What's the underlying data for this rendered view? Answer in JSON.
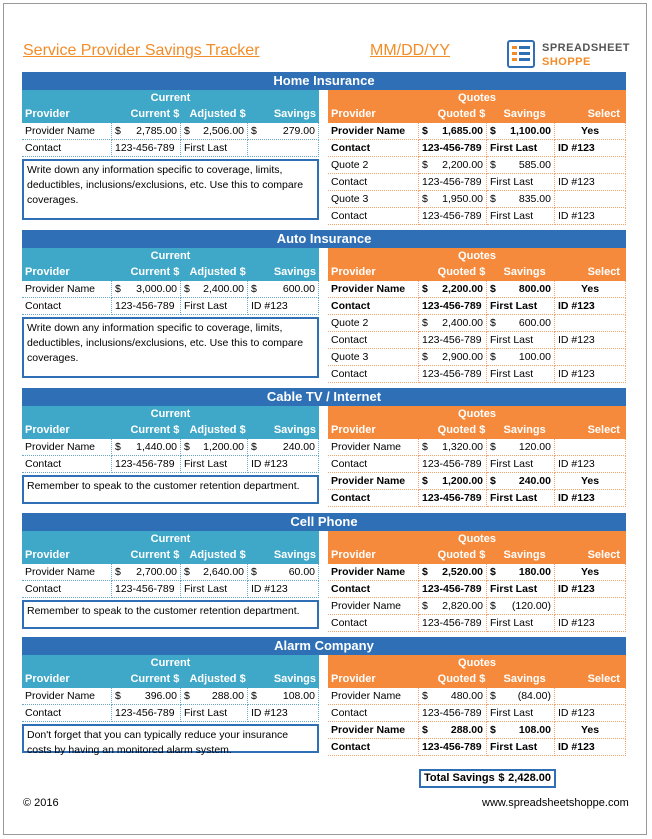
{
  "header": {
    "title": "Service Provider Savings Tracker",
    "date": "MM/DD/YY",
    "logo_line1": "SPREADSHEET",
    "logo_line2": "SHOPPE"
  },
  "labels": {
    "current": "Current",
    "quotes": "Quotes",
    "left_cols": [
      "Provider",
      "Current $",
      "Adjusted $",
      "Savings"
    ],
    "right_cols": [
      "Provider",
      "Quoted $",
      "Savings",
      "Select"
    ]
  },
  "sections": [
    {
      "name": "Home Insurance",
      "current": {
        "provider": "Provider Name",
        "current": [
          "$",
          "2,785.00"
        ],
        "adjusted": [
          "$",
          "2,506.00"
        ],
        "savings": [
          "$",
          "279.00"
        ],
        "contact": "Contact",
        "phone": "123-456-789",
        "first_last": "First Last",
        "id": ""
      },
      "note": "Write down any information specific to coverage, limits, deductibles, inclusions/exclusions, etc.  Use this to compare coverages.",
      "quotes": [
        {
          "provider": "Provider Name",
          "quoted": [
            "$",
            "1,685.00"
          ],
          "savings": [
            "$",
            "1,100.00"
          ],
          "select": "Yes",
          "contact": "Contact",
          "phone": "123-456-789",
          "first_last": "First Last",
          "id": "ID #123",
          "bold": true
        },
        {
          "provider": "Quote 2",
          "quoted": [
            "$",
            "2,200.00"
          ],
          "savings": [
            "$",
            "585.00"
          ],
          "select": "",
          "contact": "Contact",
          "phone": "123-456-789",
          "first_last": "First Last",
          "id": "ID #123",
          "bold": false
        },
        {
          "provider": "Quote 3",
          "quoted": [
            "$",
            "1,950.00"
          ],
          "savings": [
            "$",
            "835.00"
          ],
          "select": "",
          "contact": "Contact",
          "phone": "123-456-789",
          "first_last": "First Last",
          "id": "ID #123",
          "bold": false
        }
      ]
    },
    {
      "name": "Auto Insurance",
      "current": {
        "provider": "Provider Name",
        "current": [
          "$",
          "3,000.00"
        ],
        "adjusted": [
          "$",
          "2,400.00"
        ],
        "savings": [
          "$",
          "600.00"
        ],
        "contact": "Contact",
        "phone": "123-456-789",
        "first_last": "First Last",
        "id": "ID #123"
      },
      "note": "Write down any information specific to coverage, limits, deductibles, inclusions/exclusions, etc.  Use this to compare coverages.",
      "quotes": [
        {
          "provider": "Provider Name",
          "quoted": [
            "$",
            "2,200.00"
          ],
          "savings": [
            "$",
            "800.00"
          ],
          "select": "Yes",
          "contact": "Contact",
          "phone": "123-456-789",
          "first_last": "First Last",
          "id": "ID #123",
          "bold": true
        },
        {
          "provider": "Quote 2",
          "quoted": [
            "$",
            "2,400.00"
          ],
          "savings": [
            "$",
            "600.00"
          ],
          "select": "",
          "contact": "Contact",
          "phone": "123-456-789",
          "first_last": "First Last",
          "id": "ID #123",
          "bold": false
        },
        {
          "provider": "Quote 3",
          "quoted": [
            "$",
            "2,900.00"
          ],
          "savings": [
            "$",
            "100.00"
          ],
          "select": "",
          "contact": "Contact",
          "phone": "123-456-789",
          "first_last": "First Last",
          "id": "ID #123",
          "bold": false
        }
      ]
    },
    {
      "name": "Cable TV / Internet",
      "current": {
        "provider": "Provider Name",
        "current": [
          "$",
          "1,440.00"
        ],
        "adjusted": [
          "$",
          "1,200.00"
        ],
        "savings": [
          "$",
          "240.00"
        ],
        "contact": "Contact",
        "phone": "123-456-789",
        "first_last": "First Last",
        "id": "ID #123"
      },
      "note": "Remember to speak to the customer retention department.",
      "quotes": [
        {
          "provider": "Provider Name",
          "quoted": [
            "$",
            "1,320.00"
          ],
          "savings": [
            "$",
            "120.00"
          ],
          "select": "",
          "contact": "Contact",
          "phone": "123-456-789",
          "first_last": "First Last",
          "id": "ID #123",
          "bold": false
        },
        {
          "provider": "Provider Name",
          "quoted": [
            "$",
            "1,200.00"
          ],
          "savings": [
            "$",
            "240.00"
          ],
          "select": "Yes",
          "contact": "Contact",
          "phone": "123-456-789",
          "first_last": "First Last",
          "id": "ID #123",
          "bold": true
        }
      ]
    },
    {
      "name": "Cell Phone",
      "current": {
        "provider": "Provider Name",
        "current": [
          "$",
          "2,700.00"
        ],
        "adjusted": [
          "$",
          "2,640.00"
        ],
        "savings": [
          "$",
          "60.00"
        ],
        "contact": "Contact",
        "phone": "123-456-789",
        "first_last": "First Last",
        "id": "ID #123"
      },
      "note": "Remember to speak to the customer retention department.",
      "quotes": [
        {
          "provider": "Provider Name",
          "quoted": [
            "$",
            "2,520.00"
          ],
          "savings": [
            "$",
            "180.00"
          ],
          "select": "Yes",
          "contact": "Contact",
          "phone": "123-456-789",
          "first_last": "First Last",
          "id": "ID #123",
          "bold": true
        },
        {
          "provider": "Provider Name",
          "quoted": [
            "$",
            "2,820.00"
          ],
          "savings": [
            "$",
            "(120.00)"
          ],
          "select": "",
          "contact": "Contact",
          "phone": "123-456-789",
          "first_last": "First Last",
          "id": "ID #123",
          "bold": false
        }
      ]
    },
    {
      "name": "Alarm Company",
      "current": {
        "provider": "Provider Name",
        "current": [
          "$",
          "396.00"
        ],
        "adjusted": [
          "$",
          "288.00"
        ],
        "savings": [
          "$",
          "108.00"
        ],
        "contact": "Contact",
        "phone": "123-456-789",
        "first_last": "First Last",
        "id": "ID #123"
      },
      "note": "Don't forget that you can typically reduce your insurance costs by having an monitored alarm system.",
      "quotes": [
        {
          "provider": "Provider Name",
          "quoted": [
            "$",
            "480.00"
          ],
          "savings": [
            "$",
            "(84.00)"
          ],
          "select": "",
          "contact": "Contact",
          "phone": "123-456-789",
          "first_last": "First Last",
          "id": "ID #123",
          "bold": false
        },
        {
          "provider": "Provider Name",
          "quoted": [
            "$",
            "288.00"
          ],
          "savings": [
            "$",
            "108.00"
          ],
          "select": "Yes",
          "contact": "Contact",
          "phone": "123-456-789",
          "first_last": "First Last",
          "id": "ID #123",
          "bold": true
        }
      ]
    }
  ],
  "total": {
    "label": "Total Savings",
    "currency": "$",
    "value": "2,428.00"
  },
  "footer": {
    "copyright": "© 2016",
    "url": "www.spreadsheetshoppe.com"
  }
}
